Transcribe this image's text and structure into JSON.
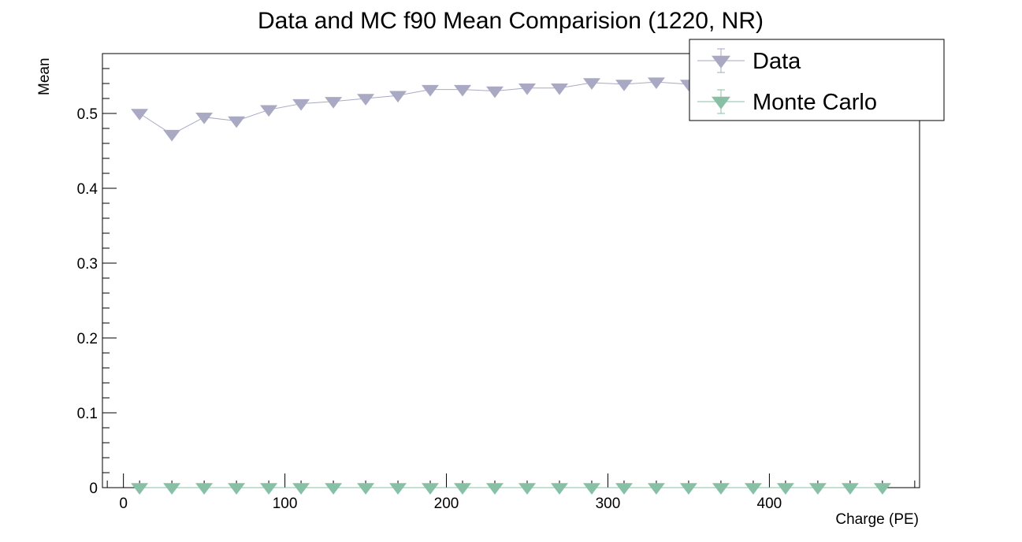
{
  "chart_data": {
    "type": "scatter",
    "title": "Data and MC f90 Mean Comparision (1220, NR)",
    "xlabel": "Charge (PE)",
    "ylabel": "Mean",
    "xlim": [
      -13,
      493
    ],
    "ylim": [
      0,
      0.58
    ],
    "x_ticks": [
      0,
      100,
      200,
      300,
      400
    ],
    "y_ticks": [
      0,
      0.1,
      0.2,
      0.3,
      0.4,
      0.5
    ],
    "x_tick_labels": [
      "0",
      "100",
      "200",
      "300",
      "400"
    ],
    "y_tick_labels": [
      "0",
      "0.1",
      "0.2",
      "0.3",
      "0.4",
      "0.5"
    ],
    "marker": "triangle-down",
    "grid": false,
    "legend_position": "top-right",
    "x": [
      10,
      30,
      50,
      70,
      90,
      110,
      130,
      150,
      170,
      190,
      210,
      230,
      250,
      270,
      290,
      310,
      330,
      350,
      370,
      390,
      410,
      430,
      450,
      470
    ],
    "series": [
      {
        "name": "Data",
        "color": "#a9a9c3",
        "values": [
          0.5,
          0.472,
          0.495,
          0.49,
          0.505,
          0.513,
          0.516,
          0.52,
          0.524,
          0.532,
          0.532,
          0.53,
          0.534,
          0.534,
          0.541,
          0.539,
          0.542,
          0.539,
          null,
          null,
          null,
          null,
          null,
          null
        ]
      },
      {
        "name": "Monte Carlo",
        "color": "#88c0a6",
        "values": [
          0,
          0,
          0,
          0,
          0,
          0,
          0,
          0,
          0,
          0,
          0,
          0,
          0,
          0,
          0,
          0,
          0,
          0,
          0,
          0,
          0,
          0,
          0,
          0
        ]
      }
    ]
  }
}
